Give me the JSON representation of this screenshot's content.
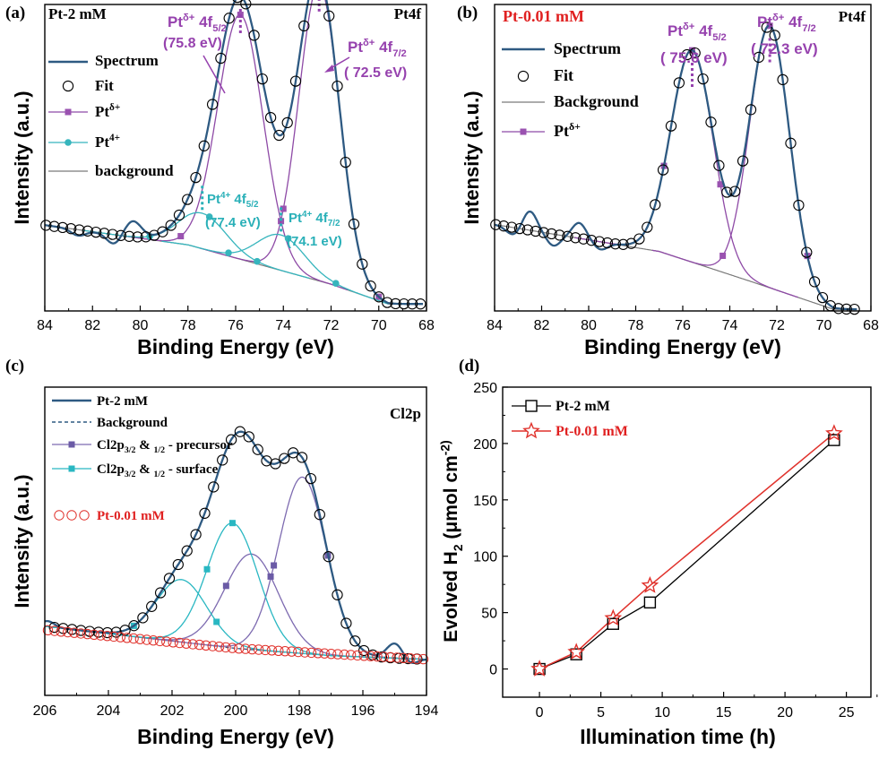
{
  "chart_data": [
    {
      "id": "a",
      "type": "line",
      "panel_label": "(a)",
      "sample_label": "Pt-2 mM",
      "region_label": "Pt4f",
      "xlabel": "Binding Energy (eV)",
      "ylabel": "Intensity (a.u.)",
      "xlim": [
        84,
        68
      ],
      "xticks": [
        "84",
        "82",
        "80",
        "78",
        "76",
        "74",
        "72",
        "70",
        "68"
      ],
      "legend": [
        "Spectrum",
        "Fit",
        "Pt^δ+",
        "Pt^4+",
        "background"
      ],
      "annotations": [
        {
          "id": "pd52",
          "line1": "Pt^δ+ 4f_5/2",
          "line2": "(75.8 eV)",
          "peak_ev": 75.8
        },
        {
          "id": "pd72",
          "line1": "Pt^δ+ 4f_7/2",
          "line2": "( 72.5 eV)",
          "peak_ev": 72.5
        },
        {
          "id": "p452",
          "line1": "Pt^4+ 4f_5/2",
          "line2": "(77.4 eV)",
          "peak_ev": 77.4
        },
        {
          "id": "p472",
          "line1": "Pt^4+ 4f_7/2",
          "line2": "(74.1 eV)",
          "peak_ev": 74.1
        }
      ],
      "background": [
        [
          84,
          0.22
        ],
        [
          78,
          0.17
        ],
        [
          72,
          0.07
        ],
        [
          69.6,
          0.02
        ],
        [
          68,
          0.02
        ]
      ],
      "peaks": {
        "pt_delta": [
          {
            "center": 75.8,
            "height": 0.62,
            "sigma": 0.95
          },
          {
            "center": 72.5,
            "height": 0.75,
            "sigma": 0.85
          }
        ],
        "pt_4": [
          {
            "center": 77.4,
            "height": 0.09,
            "sigma": 1.0
          },
          {
            "center": 74.1,
            "height": 0.09,
            "sigma": 1.0
          }
        ]
      },
      "spectrum_wiggles": [
        {
          "center": 80.3,
          "amp": 0.04,
          "w": 0.35
        },
        {
          "center": 81.1,
          "amp": -0.025,
          "w": 0.3
        },
        {
          "center": 82.6,
          "amp": -0.015,
          "w": 0.3
        }
      ]
    },
    {
      "id": "b",
      "type": "line",
      "panel_label": "(b)",
      "sample_label": "Pt-0.01 mM",
      "region_label": "Pt4f",
      "xlabel": "Binding Energy (eV)",
      "ylabel": "Intensity (a.u.)",
      "xlim": [
        84,
        68
      ],
      "xticks": [
        "84",
        "82",
        "80",
        "78",
        "76",
        "74",
        "72",
        "70",
        "68"
      ],
      "legend": [
        "Spectrum",
        "Fit",
        "Background",
        "Pt^δ+"
      ],
      "annotations": [
        {
          "id": "pd52",
          "line1": "Pt^δ+ 4f_5/2",
          "line2": "( 75.6 eV)",
          "peak_ev": 75.6
        },
        {
          "id": "pd72",
          "line1": "Pt^δ+ 4f_7/2",
          "line2": "( 72.3 eV)",
          "peak_ev": 72.3
        }
      ],
      "background": [
        [
          84,
          0.25
        ],
        [
          77,
          0.18
        ],
        [
          73,
          0.1
        ],
        [
          69.6,
          0.03
        ],
        [
          68.5,
          0.03
        ]
      ],
      "peaks": {
        "pt_delta": [
          {
            "center": 75.6,
            "height": 0.55,
            "sigma": 0.9
          },
          {
            "center": 72.3,
            "height": 0.68,
            "sigma": 0.85
          }
        ]
      },
      "spectrum_wiggles": [
        {
          "center": 82.5,
          "amp": 0.05,
          "w": 0.3
        },
        {
          "center": 80.4,
          "amp": 0.04,
          "w": 0.3
        },
        {
          "center": 81.5,
          "amp": -0.03,
          "w": 0.3
        },
        {
          "center": 83.2,
          "amp": -0.02,
          "w": 0.3
        },
        {
          "center": 79.5,
          "amp": -0.02,
          "w": 0.3
        }
      ]
    },
    {
      "id": "c",
      "type": "line",
      "panel_label": "(c)",
      "region_label": "Cl2p",
      "xlabel": "Binding Energy (eV)",
      "ylabel": "Intensity (a.u.)",
      "xlim": [
        206,
        194
      ],
      "xticks": [
        "206",
        "204",
        "202",
        "200",
        "198",
        "196",
        "194"
      ],
      "legend": [
        "Pt-2 mM",
        "Background",
        "Cl2p_3/2 & _1/2 - precursor",
        "Cl2p_3/2 & _1/2 - surface",
        "Pt-0.01 mM"
      ],
      "background": [
        [
          206,
          0.11
        ],
        [
          203,
          0.08
        ],
        [
          200,
          0.05
        ],
        [
          197,
          0.03
        ],
        [
          194,
          0.02
        ]
      ],
      "peaks": {
        "precursor": [
          {
            "center": 197.9,
            "height": 0.48,
            "sigma": 0.75
          },
          {
            "center": 199.5,
            "height": 0.26,
            "sigma": 0.85
          }
        ],
        "surface": [
          {
            "center": 200.1,
            "height": 0.34,
            "sigma": 0.8
          },
          {
            "center": 201.7,
            "height": 0.17,
            "sigma": 0.8
          }
        ]
      },
      "pt001_baseline": [
        [
          206,
          0.1
        ],
        [
          200,
          0.05
        ],
        [
          194,
          0.02
        ]
      ]
    },
    {
      "id": "d",
      "type": "line",
      "panel_label": "(d)",
      "xlabel": "Illumination time (h)",
      "ylabel": "Evolved H_2 (μmol cm^-2)",
      "xlim": [
        -3,
        27
      ],
      "ylim": [
        -25,
        250
      ],
      "xticks": [
        0,
        5,
        10,
        15,
        20,
        25
      ],
      "yticks": [
        0,
        50,
        100,
        150,
        200,
        250
      ],
      "series": [
        {
          "name": "Pt-2 mM",
          "x": [
            0,
            3,
            6,
            9,
            24
          ],
          "values": [
            0,
            13,
            40,
            59,
            203
          ]
        },
        {
          "name": "Pt-0.01 mM",
          "x": [
            0,
            3,
            6,
            9,
            24
          ],
          "values": [
            0,
            15,
            45,
            74,
            209
          ]
        }
      ]
    }
  ],
  "colors": {
    "spectrum": "#2e5a82",
    "purple": "#8e4aa6",
    "purple_marker": "#9a52b0",
    "cyan": "#36b5bd",
    "background": "#7a7a7a",
    "red": "#e0322c",
    "label_red": "#e02020",
    "annot_purple": "#9642ae",
    "annot_cyan": "#2ab0b8",
    "c_purple": "#7d6ab0",
    "c_purple_marker": "#6b5ba6",
    "c_cyan": "#29b7c2"
  }
}
